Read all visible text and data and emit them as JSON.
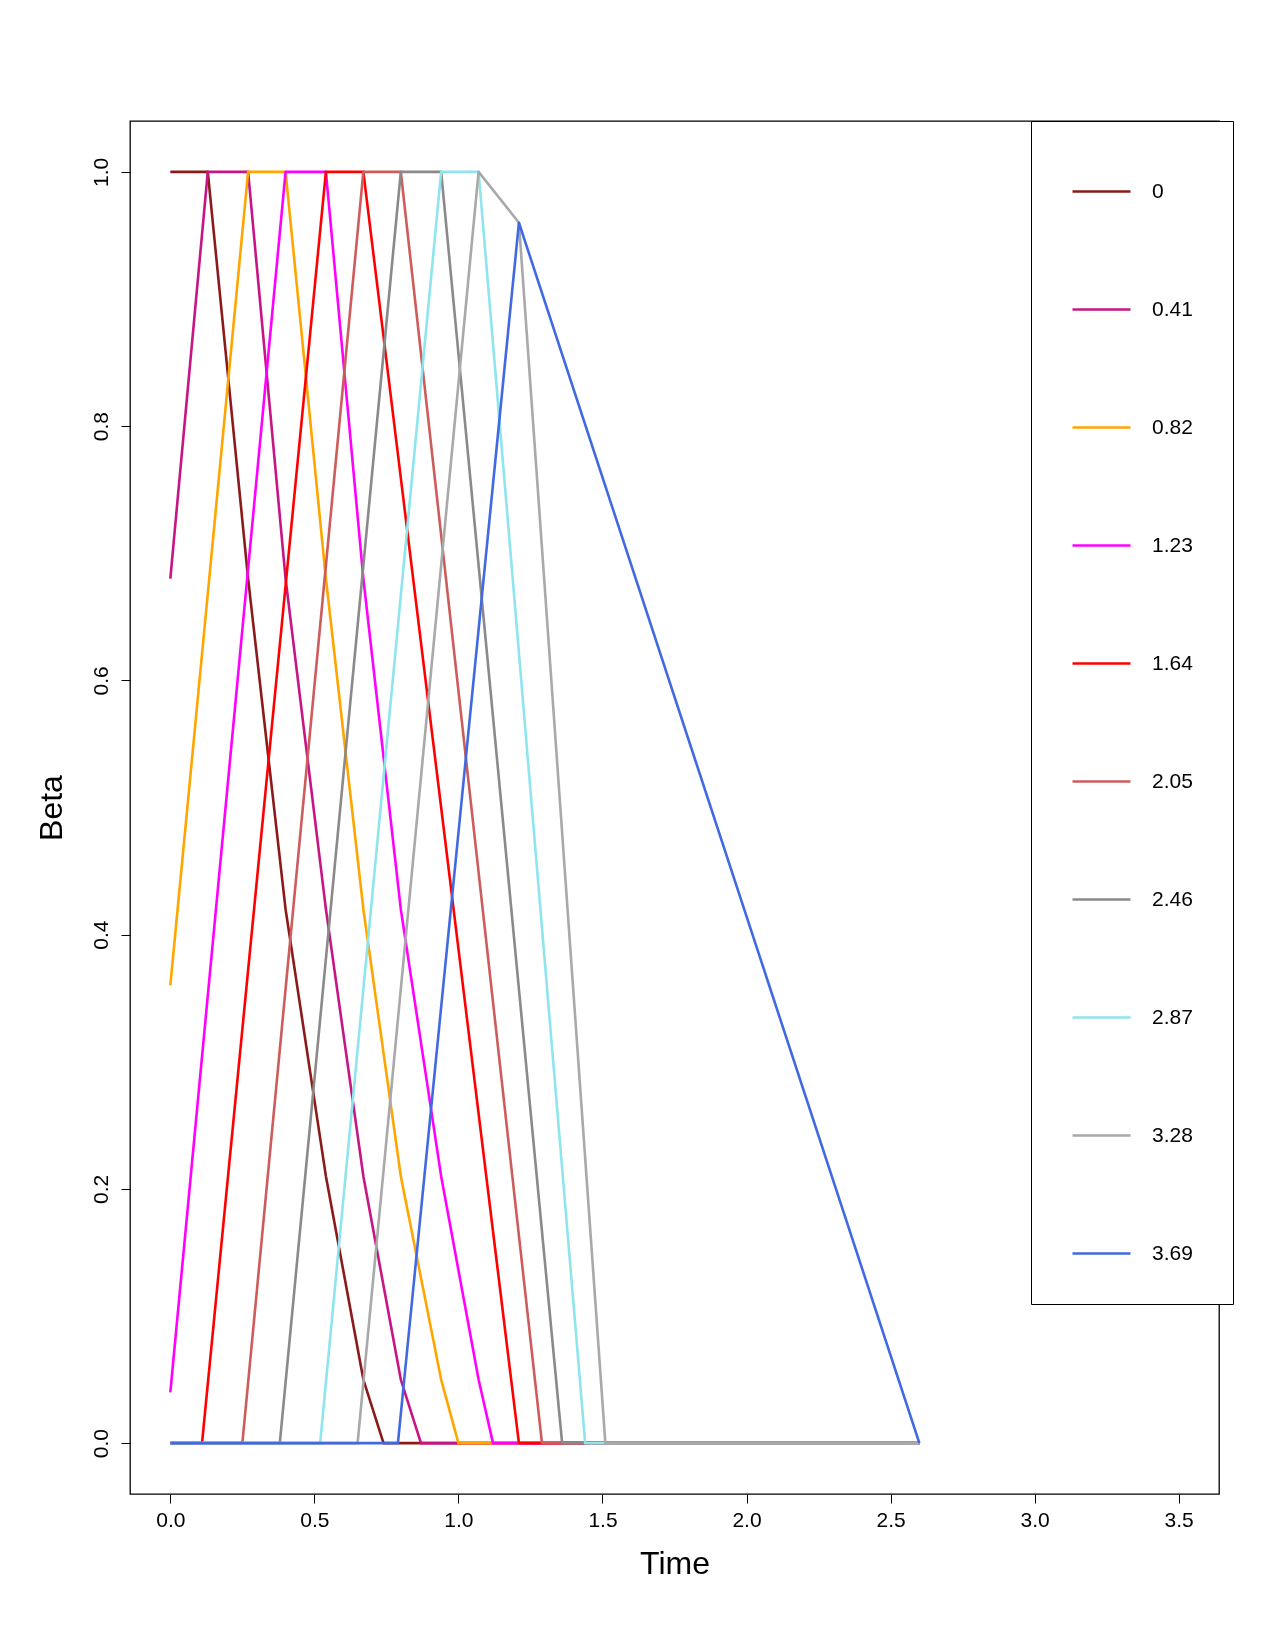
{
  "chart_data": {
    "type": "line",
    "xlabel": "Time",
    "ylabel": "Beta",
    "xlim": [
      -0.14,
      3.64
    ],
    "ylim": [
      -0.04,
      1.04
    ],
    "xticks": [
      {
        "value": 0,
        "label": "0.0"
      },
      0.5,
      {
        "value": 1,
        "label": "1.0"
      },
      1.5,
      {
        "value": 2,
        "label": "2.0"
      },
      2.5,
      {
        "value": 3,
        "label": "3.0"
      },
      3.5
    ],
    "yticks": [
      {
        "value": 0,
        "label": "0.0"
      },
      0.2,
      0.4,
      0.6,
      0.8,
      {
        "value": 1,
        "label": "1.0"
      }
    ],
    "grid": false,
    "legend": "right",
    "series": [
      {
        "name": "0",
        "color": "#8b1a1a",
        "x": [
          0,
          0.13,
          0.27,
          0.4,
          0.54,
          0.67,
          0.74,
          2.6
        ],
        "values": [
          1,
          1,
          0.68,
          0.42,
          0.21,
          0.05,
          0,
          0
        ]
      },
      {
        "name": "0.41",
        "color": "#c71585",
        "x": [
          0,
          0.13,
          0.27,
          0.4,
          0.54,
          0.67,
          0.8,
          0.87,
          2.6
        ],
        "values": [
          0.68,
          1,
          1,
          0.68,
          0.42,
          0.21,
          0.05,
          0,
          0
        ]
      },
      {
        "name": "0.82",
        "color": "#ffa500",
        "x": [
          0,
          0.27,
          0.4,
          0.54,
          0.67,
          0.8,
          0.94,
          1.0,
          2.6
        ],
        "values": [
          0.36,
          1,
          1,
          0.68,
          0.42,
          0.21,
          0.05,
          0,
          0
        ]
      },
      {
        "name": "1.23",
        "color": "#ff00ff",
        "x": [
          0,
          0.4,
          0.54,
          0.67,
          0.8,
          0.94,
          1.07,
          1.12,
          2.6
        ],
        "values": [
          0.04,
          1,
          1,
          0.68,
          0.42,
          0.21,
          0.05,
          0,
          0
        ]
      },
      {
        "name": "1.64",
        "color": "#ff0000",
        "x": [
          0,
          0.11,
          0.54,
          0.67,
          1.21,
          2.6
        ],
        "values": [
          0,
          0,
          1,
          1,
          0,
          0
        ]
      },
      {
        "name": "2.05",
        "color": "#cd5c5c",
        "x": [
          0,
          0.25,
          0.67,
          0.8,
          1.29,
          2.6
        ],
        "values": [
          0,
          0,
          1,
          1,
          0,
          0
        ]
      },
      {
        "name": "2.46",
        "color": "#8b8989",
        "x": [
          0,
          0.38,
          0.8,
          0.94,
          1.36,
          2.6
        ],
        "values": [
          0,
          0,
          1,
          1,
          0,
          0
        ]
      },
      {
        "name": "2.87",
        "color": "#8ee5ee",
        "x": [
          0,
          0.52,
          0.94,
          1.07,
          1.44,
          2.6
        ],
        "values": [
          0,
          0,
          1,
          1,
          0,
          0
        ]
      },
      {
        "name": "3.28",
        "color": "#a9a9a9",
        "x": [
          0,
          0.65,
          1.07,
          1.21,
          1.51,
          2.6
        ],
        "values": [
          0,
          0,
          1,
          0.96,
          0,
          0
        ]
      },
      {
        "name": "3.69",
        "color": "#4169e1",
        "x": [
          0,
          0.79,
          1.21,
          2.6
        ],
        "values": [
          0,
          0,
          0.96,
          0
        ]
      }
    ]
  }
}
